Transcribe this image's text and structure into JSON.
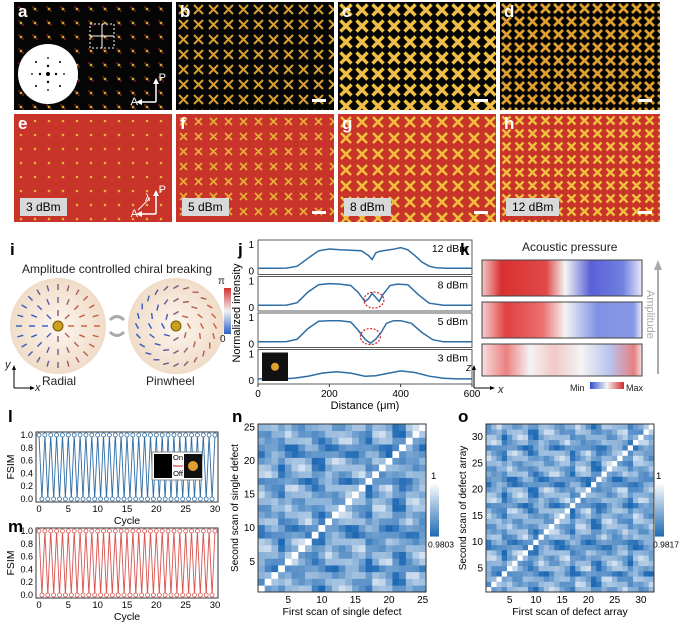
{
  "panel_labels": {
    "a": "a",
    "b": "b",
    "c": "c",
    "d": "d",
    "e": "e",
    "f": "f",
    "g": "g",
    "h": "h",
    "i": "i",
    "j": "j",
    "k": "k",
    "l": "l",
    "m": "m",
    "n": "n",
    "o": "o"
  },
  "pol": {
    "p": "P",
    "a": "A",
    "lambda": "λ"
  },
  "power_labels": {
    "e": "3 dBm",
    "f": "5 dBm",
    "g": "8 dBm",
    "h": "12 dBm"
  },
  "panel_i": {
    "title": "Amplitude controlled chiral breaking",
    "left_label": "Radial",
    "right_label": "Pinwheel",
    "cb_max": "π",
    "cb_min": "0",
    "axis_y": "y",
    "axis_x": "x"
  },
  "panel_k": {
    "title": "Acoustic pressure",
    "amplitude": "Amplitude",
    "cb_min": "Min",
    "cb_max": "Max",
    "axis_z": "z",
    "axis_x": "x"
  },
  "chart_data": [
    {
      "id": "j",
      "type": "line",
      "xlabel": "Distance (μm)",
      "ylabel": "Normalized intensity",
      "xlim": [
        0,
        600
      ],
      "xticks": [
        "0",
        "200",
        "400",
        "600"
      ],
      "series": [
        {
          "name": "12 dBm",
          "yticks": [
            "0",
            "1"
          ],
          "x": [
            0,
            40,
            80,
            110,
            140,
            170,
            200,
            230,
            260,
            290,
            310,
            320,
            330,
            340,
            360,
            380,
            400,
            420,
            440,
            460,
            480,
            500,
            530,
            560,
            600
          ],
          "y": [
            0.12,
            0.12,
            0.13,
            0.2,
            0.5,
            0.78,
            0.85,
            0.82,
            0.8,
            0.78,
            0.6,
            0.45,
            0.7,
            0.76,
            0.8,
            0.84,
            0.9,
            0.82,
            0.6,
            0.35,
            0.2,
            0.14,
            0.12,
            0.12,
            0.12
          ]
        },
        {
          "name": "8 dBm",
          "yticks": [
            "0",
            "1"
          ],
          "x": [
            0,
            40,
            80,
            110,
            140,
            170,
            200,
            230,
            260,
            280,
            300,
            310,
            320,
            330,
            340,
            350,
            370,
            390,
            420,
            450,
            480,
            520,
            560,
            600
          ],
          "y": [
            0.1,
            0.1,
            0.11,
            0.2,
            0.6,
            0.88,
            0.92,
            0.9,
            0.85,
            0.6,
            0.25,
            0.35,
            0.55,
            0.4,
            0.25,
            0.5,
            0.85,
            0.9,
            0.88,
            0.5,
            0.18,
            0.1,
            0.1,
            0.1
          ]
        },
        {
          "name": "5 dBm",
          "yticks": [
            "0",
            "1"
          ],
          "x": [
            0,
            40,
            80,
            110,
            140,
            170,
            200,
            230,
            260,
            280,
            300,
            315,
            330,
            345,
            360,
            380,
            400,
            430,
            460,
            490,
            520,
            560,
            600
          ],
          "y": [
            0.1,
            0.1,
            0.11,
            0.2,
            0.6,
            0.88,
            0.9,
            0.9,
            0.85,
            0.55,
            0.2,
            0.05,
            0.2,
            0.45,
            0.8,
            0.9,
            0.9,
            0.8,
            0.45,
            0.18,
            0.1,
            0.1,
            0.1
          ]
        },
        {
          "name": "3 dBm",
          "yticks": [
            "0",
            "1"
          ],
          "x": [
            0,
            60,
            100,
            140,
            180,
            220,
            260,
            300,
            330,
            360,
            400,
            440,
            480,
            520,
            560,
            600
          ],
          "y": [
            0.08,
            0.08,
            0.1,
            0.18,
            0.3,
            0.35,
            0.3,
            0.18,
            0.2,
            0.28,
            0.38,
            0.32,
            0.18,
            0.1,
            0.08,
            0.08
          ]
        }
      ]
    },
    {
      "id": "l",
      "type": "line",
      "xlabel": "Cycle",
      "ylabel": "FSIM",
      "xlim": [
        0,
        30
      ],
      "ylim": [
        0,
        1
      ],
      "xticks": [
        "0",
        "5",
        "10",
        "15",
        "20",
        "25",
        "30"
      ],
      "yticks": [
        "0.0",
        "0.2",
        "0.4",
        "0.6",
        "0.8",
        "1.0"
      ],
      "pattern": "alternates 1.0 (on) and 0.0 (off) each half-cycle over 30 cycles",
      "series": [
        {
          "name": "FSIM",
          "high": 1.0,
          "low": 0.0,
          "color": "#2e6da4"
        }
      ],
      "legend": {
        "on": "On",
        "off": "Off"
      }
    },
    {
      "id": "m",
      "type": "line",
      "xlabel": "Cycle",
      "ylabel": "FSIM",
      "xlim": [
        0,
        30
      ],
      "ylim": [
        0,
        1
      ],
      "xticks": [
        "0",
        "5",
        "10",
        "15",
        "20",
        "25",
        "30"
      ],
      "yticks": [
        "0.0",
        "0.2",
        "0.4",
        "0.6",
        "0.8",
        "1.0"
      ],
      "pattern": "alternates 1.0 and 0.0 each half-cycle over 30 cycles",
      "series": [
        {
          "name": "FSIM",
          "high": 1.0,
          "low": 0.0,
          "color": "#d9534f"
        }
      ]
    },
    {
      "id": "n",
      "type": "heatmap",
      "size": 25,
      "xlabel": "First scan of single defect",
      "ylabel": "Second scan of single defect",
      "ticks": [
        "5",
        "10",
        "15",
        "20",
        "25"
      ],
      "cb_max": "1",
      "cb_min": "0.9803",
      "range": [
        0.9803,
        1
      ]
    },
    {
      "id": "o",
      "type": "heatmap",
      "size": 32,
      "xlabel": "First scan of defect array",
      "ylabel": "Second scan of defect array",
      "ticks": [
        "5",
        "10",
        "15",
        "20",
        "25",
        "30"
      ],
      "cb_max": "1",
      "cb_min": "0.9817",
      "range": [
        0.9817,
        1
      ]
    }
  ],
  "colors": {
    "blue": "#2e6da4",
    "red": "#d9534f",
    "micro_red": "#c9342a",
    "gold": "#e8b23a"
  }
}
